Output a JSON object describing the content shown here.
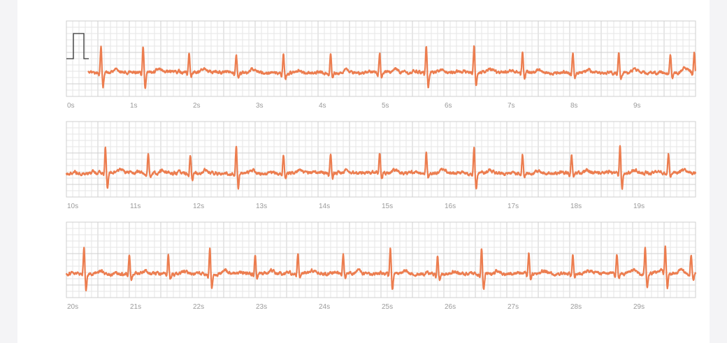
{
  "colors": {
    "trace": "#ec7d4f",
    "grid_minor": "#e6e6e6",
    "grid_major": "#cfcfcf",
    "calibration": "#333333",
    "tick_text": "#9a9a9a"
  },
  "chart_data": {
    "type": "line",
    "title": "",
    "xlabel": "",
    "ylabel": "",
    "grid": true,
    "x_unit": "s",
    "strips": [
      {
        "xlim": [
          0,
          10
        ],
        "tick_labels": [
          "0s",
          "1s",
          "2s",
          "3s",
          "4s",
          "5s",
          "6s",
          "7s",
          "8s",
          "9s"
        ],
        "signal_start": 0.35,
        "calibration_pulse": true,
        "beats": [
          0.55,
          1.22,
          1.95,
          2.7,
          3.45,
          4.2,
          4.98,
          5.72,
          6.48,
          7.25,
          8.05,
          8.78,
          9.6,
          9.98
        ],
        "wide_beats": [
          0.55,
          1.22,
          5.72,
          6.48
        ]
      },
      {
        "xlim": [
          10,
          20
        ],
        "tick_labels": [
          "10s",
          "11s",
          "12s",
          "13s",
          "14s",
          "15s",
          "16s",
          "17s",
          "18s",
          "19s"
        ],
        "signal_start": 0,
        "calibration_pulse": false,
        "beats": [
          10.62,
          11.3,
          11.97,
          12.7,
          13.45,
          14.2,
          14.98,
          15.72,
          16.48,
          17.25,
          18.03,
          18.8,
          19.57
        ],
        "wide_beats": [
          10.62,
          12.7,
          16.48,
          18.8
        ]
      },
      {
        "xlim": [
          20,
          30
        ],
        "tick_labels": [
          "20s",
          "21s",
          "22s",
          "23s",
          "24s",
          "25s",
          "26s",
          "27s",
          "28s",
          "29s"
        ],
        "signal_start": 0,
        "calibration_pulse": false,
        "beats": [
          20.28,
          21.0,
          21.62,
          22.28,
          23.0,
          23.68,
          24.4,
          25.15,
          25.9,
          26.6,
          27.35,
          28.05,
          28.75,
          29.2,
          29.52,
          29.93
        ],
        "wide_beats": [
          20.28,
          22.28,
          25.15,
          26.6,
          29.2,
          29.52
        ]
      }
    ]
  }
}
